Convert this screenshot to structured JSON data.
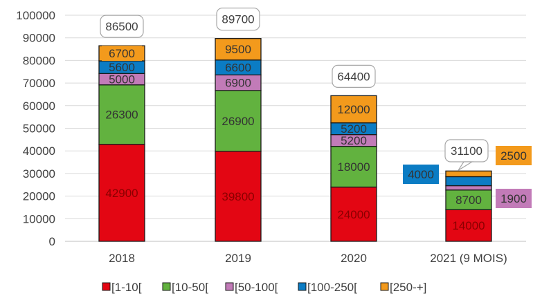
{
  "chart_data": {
    "type": "bar",
    "stacked": true,
    "categories": [
      "2018",
      "2019",
      "2020",
      "2021 (9 MOIS)"
    ],
    "series": [
      {
        "name": "[1-10[",
        "color": "#e30613",
        "values": [
          42900,
          39800,
          24000,
          14000
        ]
      },
      {
        "name": "[10-50[",
        "color": "#62b23f",
        "values": [
          26300,
          26900,
          18000,
          8700
        ]
      },
      {
        "name": "[50-100[",
        "color": "#c27bb8",
        "values": [
          5000,
          6900,
          5200,
          1900
        ]
      },
      {
        "name": "[100-250[",
        "color": "#0b7cc4",
        "values": [
          5600,
          6600,
          5200,
          4000
        ]
      },
      {
        "name": "[250-+]",
        "color": "#f39a1c",
        "values": [
          6700,
          9500,
          12000,
          2500
        ]
      }
    ],
    "totals": [
      86500,
      89700,
      64400,
      31100
    ],
    "ylim": [
      0,
      100000
    ],
    "ytick_step": 10000,
    "grid": true,
    "legend_position": "bottom",
    "title": "",
    "xlabel": "",
    "ylabel": ""
  }
}
